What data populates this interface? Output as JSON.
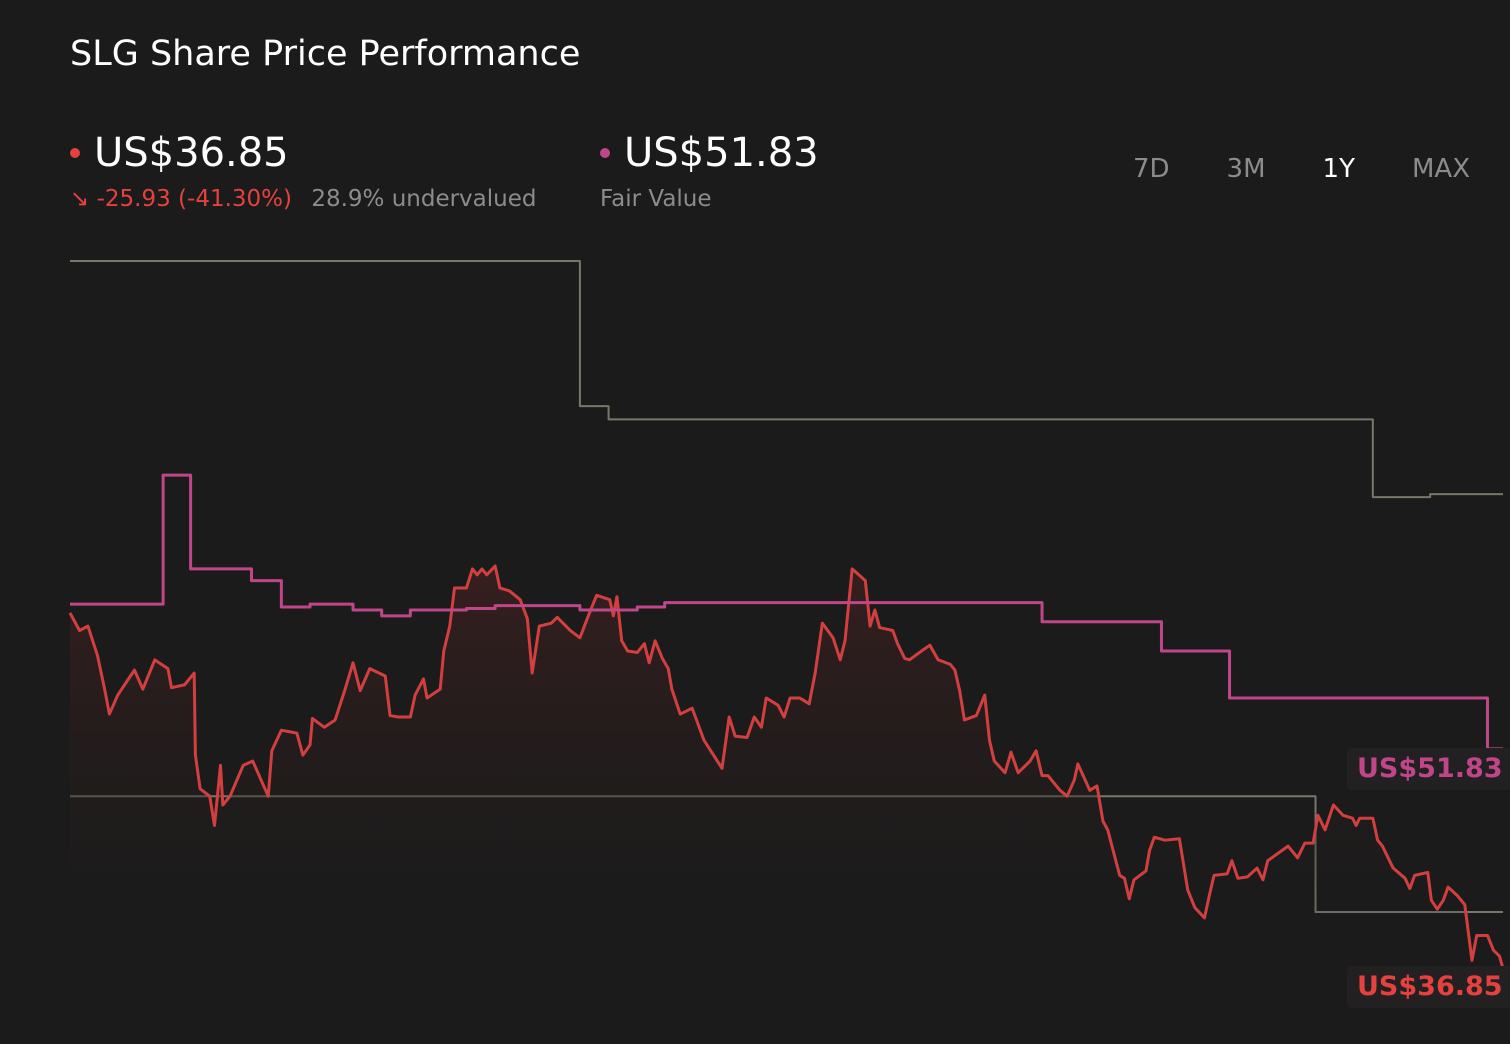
{
  "title": "SLG Share Price Performance",
  "current": {
    "price": "US$36.85",
    "change": "-25.93 (-41.30%)",
    "valuation": "28.9% undervalued",
    "color": "#e5413f",
    "arrow_icon": "arrow-down-right"
  },
  "fair_value": {
    "price": "US$51.83",
    "label": "Fair Value",
    "color": "#c0468a"
  },
  "time_ranges": [
    "7D",
    "3M",
    "1Y",
    "MAX"
  ],
  "active_range": "1Y",
  "end_labels": {
    "fair_value": "US$51.83",
    "price": "US$36.85"
  },
  "chart_data": {
    "type": "line",
    "title": "SLG Share Price Performance",
    "xlabel": "",
    "ylabel": "",
    "x_unit": "months (1Y range)",
    "xlim": [
      0,
      12
    ],
    "ylim": [
      31.7,
      102.9
    ],
    "grid": false,
    "legend": "top-left",
    "series": [
      {
        "key": "price",
        "color": "#d23f3f",
        "area": true,
        "points": [
          [
            0,
            61.1
          ],
          [
            0.08,
            59.9
          ],
          [
            0.15,
            60.2
          ],
          [
            0.23,
            58.2
          ],
          [
            0.29,
            55.9
          ],
          [
            0.33,
            54.2
          ],
          [
            0.4,
            55.5
          ],
          [
            0.49,
            56.6
          ],
          [
            0.54,
            57.2
          ],
          [
            0.61,
            55.9
          ],
          [
            0.71,
            57.9
          ],
          [
            0.82,
            57.3
          ],
          [
            0.85,
            56.0
          ],
          [
            0.96,
            56.2
          ],
          [
            1.04,
            57.0
          ],
          [
            1.05,
            51.4
          ],
          [
            1.09,
            49.1
          ],
          [
            1.17,
            48.6
          ],
          [
            1.21,
            46.6
          ],
          [
            1.26,
            50.7
          ],
          [
            1.28,
            48.0
          ],
          [
            1.34,
            48.6
          ],
          [
            1.45,
            50.7
          ],
          [
            1.53,
            51.0
          ],
          [
            1.66,
            48.6
          ],
          [
            1.69,
            51.7
          ],
          [
            1.77,
            53.1
          ],
          [
            1.9,
            52.9
          ],
          [
            1.95,
            51.4
          ],
          [
            2.01,
            52.1
          ],
          [
            2.03,
            53.9
          ],
          [
            2.13,
            53.3
          ],
          [
            2.22,
            53.8
          ],
          [
            2.3,
            55.8
          ],
          [
            2.37,
            57.7
          ],
          [
            2.43,
            55.8
          ],
          [
            2.51,
            57.3
          ],
          [
            2.64,
            56.8
          ],
          [
            2.68,
            54.1
          ],
          [
            2.75,
            54.0
          ],
          [
            2.85,
            54.0
          ],
          [
            2.89,
            55.5
          ],
          [
            2.96,
            56.6
          ],
          [
            2.99,
            55.3
          ],
          [
            3.1,
            55.9
          ],
          [
            3.13,
            58.5
          ],
          [
            3.18,
            60.2
          ],
          [
            3.22,
            62.8
          ],
          [
            3.32,
            62.8
          ],
          [
            3.37,
            64.1
          ],
          [
            3.41,
            63.7
          ],
          [
            3.45,
            64.1
          ],
          [
            3.49,
            63.7
          ],
          [
            3.56,
            64.3
          ],
          [
            3.6,
            62.8
          ],
          [
            3.68,
            62.6
          ],
          [
            3.77,
            62.0
          ],
          [
            3.83,
            60.7
          ],
          [
            3.87,
            57.0
          ],
          [
            3.93,
            60.2
          ],
          [
            4.03,
            60.4
          ],
          [
            4.08,
            60.8
          ],
          [
            4.19,
            59.9
          ],
          [
            4.27,
            59.4
          ],
          [
            4.35,
            61.1
          ],
          [
            4.41,
            62.3
          ],
          [
            4.52,
            62.0
          ],
          [
            4.55,
            60.9
          ],
          [
            4.58,
            62.2
          ],
          [
            4.62,
            59.2
          ],
          [
            4.67,
            58.5
          ],
          [
            4.75,
            58.4
          ],
          [
            4.81,
            59.0
          ],
          [
            4.85,
            57.7
          ],
          [
            4.9,
            59.2
          ],
          [
            4.96,
            58.0
          ],
          [
            5.01,
            57.3
          ],
          [
            5.04,
            55.9
          ],
          [
            5.11,
            54.2
          ],
          [
            5.21,
            54.6
          ],
          [
            5.31,
            52.4
          ],
          [
            5.46,
            50.5
          ],
          [
            5.52,
            54.0
          ],
          [
            5.57,
            52.7
          ],
          [
            5.67,
            52.6
          ],
          [
            5.73,
            54.0
          ],
          [
            5.79,
            53.3
          ],
          [
            5.83,
            55.3
          ],
          [
            5.93,
            54.8
          ],
          [
            5.98,
            54.0
          ],
          [
            6.03,
            55.3
          ],
          [
            6.11,
            55.3
          ],
          [
            6.19,
            54.9
          ],
          [
            6.24,
            57.0
          ],
          [
            6.3,
            60.4
          ],
          [
            6.39,
            59.4
          ],
          [
            6.45,
            57.9
          ],
          [
            6.49,
            59.2
          ],
          [
            6.55,
            64.1
          ],
          [
            6.66,
            63.3
          ],
          [
            6.7,
            60.2
          ],
          [
            6.74,
            61.3
          ],
          [
            6.78,
            60.1
          ],
          [
            6.89,
            59.9
          ],
          [
            6.93,
            59.0
          ],
          [
            6.99,
            58.0
          ],
          [
            7.03,
            57.9
          ],
          [
            7.13,
            58.5
          ],
          [
            7.2,
            58.9
          ],
          [
            7.27,
            57.9
          ],
          [
            7.37,
            57.6
          ],
          [
            7.41,
            57.2
          ],
          [
            7.45,
            55.8
          ],
          [
            7.49,
            53.8
          ],
          [
            7.59,
            54.1
          ],
          [
            7.66,
            55.5
          ],
          [
            7.7,
            52.4
          ],
          [
            7.74,
            51.0
          ],
          [
            7.83,
            50.2
          ],
          [
            7.88,
            51.6
          ],
          [
            7.94,
            50.2
          ],
          [
            8.04,
            51.0
          ],
          [
            8.09,
            51.7
          ],
          [
            8.14,
            50.0
          ],
          [
            8.19,
            50.0
          ],
          [
            8.29,
            49.0
          ],
          [
            8.35,
            48.6
          ],
          [
            8.41,
            49.7
          ],
          [
            8.44,
            50.8
          ],
          [
            8.54,
            49.0
          ],
          [
            8.6,
            49.3
          ],
          [
            8.65,
            46.9
          ],
          [
            8.69,
            46.3
          ],
          [
            8.79,
            43.2
          ],
          [
            8.83,
            43.0
          ],
          [
            8.87,
            41.6
          ],
          [
            8.91,
            42.9
          ],
          [
            9.01,
            43.5
          ],
          [
            9.04,
            44.9
          ],
          [
            9.08,
            45.8
          ],
          [
            9.17,
            45.6
          ],
          [
            9.29,
            45.7
          ],
          [
            9.36,
            42.2
          ],
          [
            9.42,
            41.0
          ],
          [
            9.5,
            40.3
          ],
          [
            9.54,
            41.8
          ],
          [
            9.58,
            43.2
          ],
          [
            9.69,
            43.3
          ],
          [
            9.73,
            44.2
          ],
          [
            9.78,
            43.0
          ],
          [
            9.86,
            43.1
          ],
          [
            9.94,
            43.7
          ],
          [
            9.99,
            42.9
          ],
          [
            10.03,
            44.2
          ],
          [
            10.2,
            45.2
          ],
          [
            10.28,
            44.4
          ],
          [
            10.34,
            45.4
          ],
          [
            10.41,
            45.4
          ],
          [
            10.45,
            47.3
          ],
          [
            10.51,
            46.3
          ],
          [
            10.58,
            48.0
          ],
          [
            10.66,
            47.3
          ],
          [
            10.74,
            47.1
          ],
          [
            10.77,
            46.6
          ],
          [
            10.8,
            47.1
          ],
          [
            10.91,
            47.1
          ],
          [
            10.95,
            45.6
          ],
          [
            10.99,
            45.2
          ],
          [
            11.08,
            43.7
          ],
          [
            11.18,
            43.0
          ],
          [
            11.22,
            42.3
          ],
          [
            11.26,
            43.2
          ],
          [
            11.37,
            43.4
          ],
          [
            11.4,
            41.5
          ],
          [
            11.45,
            40.9
          ],
          [
            11.5,
            41.5
          ],
          [
            11.54,
            42.4
          ],
          [
            11.62,
            41.8
          ],
          [
            11.68,
            41.2
          ],
          [
            11.74,
            37.4
          ],
          [
            11.78,
            39.1
          ],
          [
            11.87,
            39.1
          ],
          [
            11.92,
            38.1
          ],
          [
            11.97,
            37.7
          ],
          [
            12,
            36.85
          ]
        ]
      },
      {
        "key": "fair_value",
        "color": "#c0468a",
        "step": true,
        "points": [
          [
            0,
            61.7
          ],
          [
            0.78,
            70.5
          ],
          [
            1.01,
            64.1
          ],
          [
            1.52,
            63.3
          ],
          [
            1.77,
            61.5
          ],
          [
            2.01,
            61.7
          ],
          [
            2.37,
            61.3
          ],
          [
            2.61,
            60.9
          ],
          [
            2.85,
            61.3
          ],
          [
            3.32,
            61.4
          ],
          [
            3.56,
            61.6
          ],
          [
            4.04,
            61.6
          ],
          [
            4.27,
            61.3
          ],
          [
            4.75,
            61.5
          ],
          [
            4.98,
            61.8
          ],
          [
            8.14,
            60.5
          ],
          [
            9.14,
            58.5
          ],
          [
            9.71,
            55.3
          ],
          [
            11.87,
            51.83
          ],
          [
            12,
            51.83
          ]
        ]
      },
      {
        "key": "upper_step",
        "color": "#77776a",
        "step": true,
        "points": [
          [
            0,
            85.1
          ],
          [
            4.27,
            75.2
          ],
          [
            4.51,
            74.3
          ],
          [
            10.91,
            69.0
          ],
          [
            11.39,
            69.2
          ],
          [
            12,
            69.2
          ]
        ]
      },
      {
        "key": "lower_step",
        "color": "#77776a",
        "step": true,
        "points": [
          [
            0,
            48.6
          ],
          [
            10.43,
            40.7
          ],
          [
            12,
            40.7
          ]
        ]
      }
    ]
  }
}
